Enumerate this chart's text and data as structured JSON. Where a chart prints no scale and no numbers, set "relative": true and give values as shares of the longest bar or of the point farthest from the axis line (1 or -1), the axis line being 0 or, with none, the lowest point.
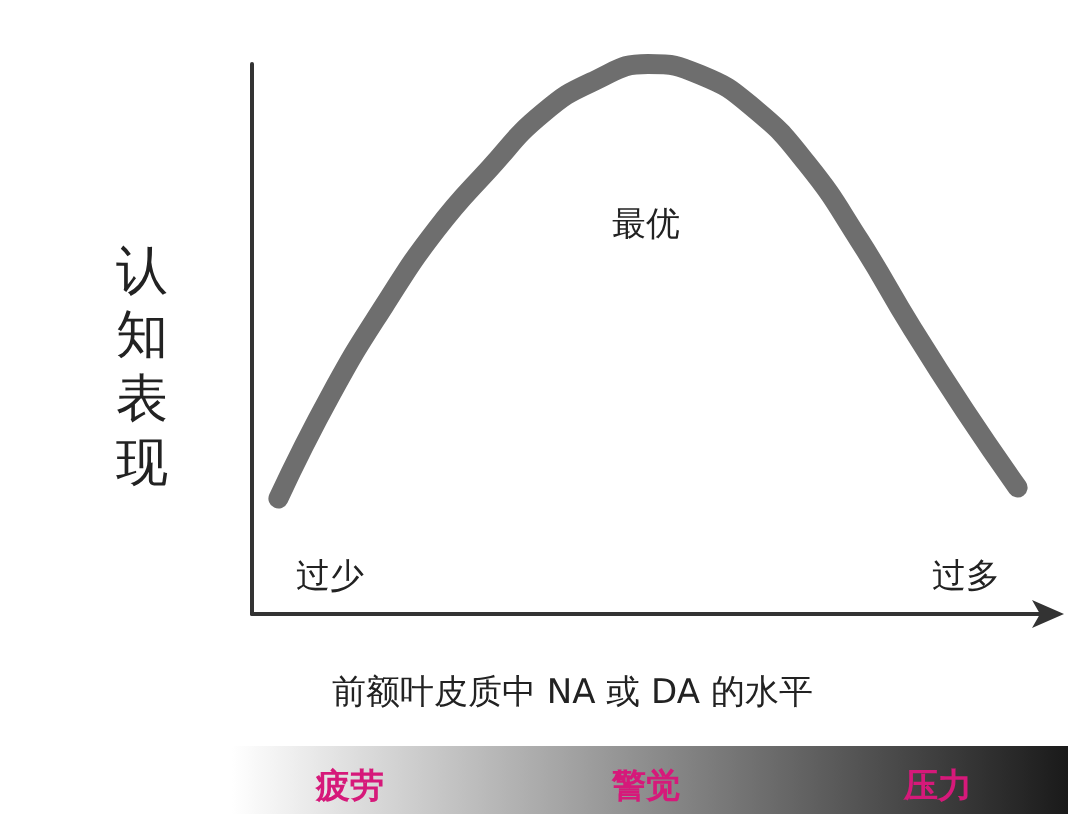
{
  "chart_data": {
    "type": "line",
    "relative": true,
    "ylabel": "认知表现",
    "xlabel": "前额叶皮质中 NA 或 DA 的水平",
    "categories": [
      null,
      null,
      null,
      null,
      null,
      null,
      null,
      null,
      null,
      null,
      null,
      null,
      null,
      null,
      null
    ],
    "series": [
      {
        "color": "#6e6e6e",
        "values": [
          0.21,
          0.4,
          0.56,
          0.7,
          0.81,
          0.91,
          0.97,
          1,
          0.98,
          0.92,
          0.82,
          0.68,
          0.52,
          0.37,
          0.23
        ]
      }
    ],
    "annotations": [
      "最优",
      "过少",
      "过多",
      "疲劳",
      "警觉",
      "压力"
    ],
    "grid": false,
    "line_style": "solid"
  }
}
